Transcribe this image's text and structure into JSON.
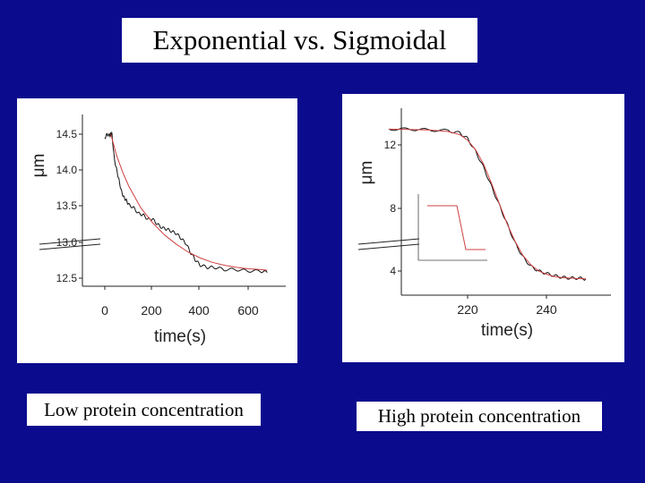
{
  "title": "Exponential vs. Sigmoidal",
  "captions": {
    "left": "Low protein concentration",
    "right": "High protein concentration"
  },
  "colors": {
    "background": "#0b0b8e",
    "data_line": "#111111",
    "fit_line": "#d04040"
  },
  "chart_data": [
    {
      "type": "line",
      "title": "",
      "xlabel": "time(s)",
      "ylabel": "μm",
      "xlim": [
        -60,
        700
      ],
      "ylim": [
        12.3,
        14.75
      ],
      "xticks": [
        "0",
        "200",
        "400",
        "600"
      ],
      "yticks": [
        "14.5",
        "14.0",
        "13.5",
        "13.0",
        "12.5"
      ],
      "series": [
        {
          "style": "noisy data",
          "x": [
            0,
            10,
            20,
            25,
            30,
            40,
            50,
            60,
            70,
            80,
            90,
            100,
            120,
            140,
            160,
            180,
            200,
            220,
            240,
            260,
            280,
            300,
            320,
            340,
            360,
            380,
            400,
            430,
            460,
            500,
            550,
            600,
            650,
            680
          ],
          "y": [
            14.45,
            14.5,
            14.48,
            14.5,
            14.5,
            14.15,
            14.0,
            13.85,
            13.7,
            13.62,
            13.58,
            13.52,
            13.48,
            13.4,
            13.38,
            13.32,
            13.32,
            13.25,
            13.2,
            13.18,
            13.15,
            13.12,
            13.05,
            12.98,
            12.85,
            12.75,
            12.68,
            12.65,
            12.65,
            12.62,
            12.62,
            12.6,
            12.6,
            12.58
          ]
        },
        {
          "style": "exponential fit",
          "x": [
            25,
            50,
            75,
            100,
            150,
            200,
            250,
            300,
            350,
            400,
            450,
            500,
            550,
            600,
            650,
            680
          ],
          "y": [
            14.5,
            14.2,
            13.97,
            13.78,
            13.48,
            13.27,
            13.1,
            12.97,
            12.86,
            12.78,
            12.72,
            12.68,
            12.65,
            12.63,
            12.62,
            12.61
          ]
        }
      ]
    },
    {
      "type": "line",
      "title": "",
      "xlabel": "time(s)",
      "ylabel": "μm",
      "xlim": [
        200,
        250
      ],
      "ylim": [
        3.2,
        13.8
      ],
      "xticks": [
        "220",
        "240"
      ],
      "yticks": [
        "12",
        "8",
        "4"
      ],
      "series": [
        {
          "style": "noisy data",
          "x": [
            200,
            205,
            210,
            215,
            218,
            220,
            222,
            224,
            226,
            228,
            230,
            232,
            234,
            236,
            238,
            240,
            242,
            244,
            246,
            248,
            250
          ],
          "y": [
            13.0,
            13.0,
            12.95,
            12.9,
            12.75,
            12.4,
            11.6,
            10.6,
            9.4,
            8.2,
            7.0,
            5.8,
            4.9,
            4.3,
            4.0,
            3.85,
            3.7,
            3.6,
            3.55,
            3.55,
            3.5
          ]
        },
        {
          "style": "sigmoidal fit",
          "x": [
            200,
            205,
            210,
            215,
            218,
            220,
            222,
            224,
            226,
            228,
            230,
            232,
            234,
            236,
            238,
            240,
            242,
            244,
            246,
            248,
            250
          ],
          "y": [
            13.0,
            12.98,
            12.95,
            12.85,
            12.65,
            12.3,
            11.7,
            10.8,
            9.6,
            8.3,
            7.0,
            5.9,
            5.0,
            4.4,
            4.0,
            3.8,
            3.65,
            3.58,
            3.55,
            3.52,
            3.5
          ]
        }
      ],
      "inset": {
        "type": "line",
        "description": "step function"
      }
    }
  ]
}
